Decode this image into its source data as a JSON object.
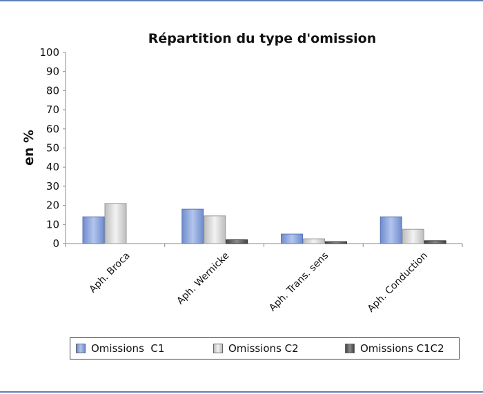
{
  "chart_data": {
    "type": "bar",
    "title": "Répartition du type d'omission",
    "ylabel": "en %",
    "xlabel": "",
    "ylim": [
      0,
      100
    ],
    "yticks": [
      "0",
      "10",
      "20",
      "30",
      "40",
      "50",
      "60",
      "70",
      "80",
      "90",
      "100"
    ],
    "grid": false,
    "legend_position": "bottom",
    "categories": [
      "Aph. Broca",
      "Aph. Wernicke",
      "Aph. Trans. sens",
      "Aph. Conduction"
    ],
    "series": [
      {
        "name": "Omissions  C1",
        "color": "#8fa6d9",
        "values": [
          14,
          18,
          5,
          14
        ]
      },
      {
        "name": "Omissions C2",
        "color": "#d9d9d9",
        "values": [
          21,
          14.5,
          2.5,
          7.5
        ]
      },
      {
        "name": "Omissions C1C2",
        "color": "#6b6b6b",
        "values": [
          0,
          2,
          1,
          1.5
        ]
      }
    ]
  }
}
